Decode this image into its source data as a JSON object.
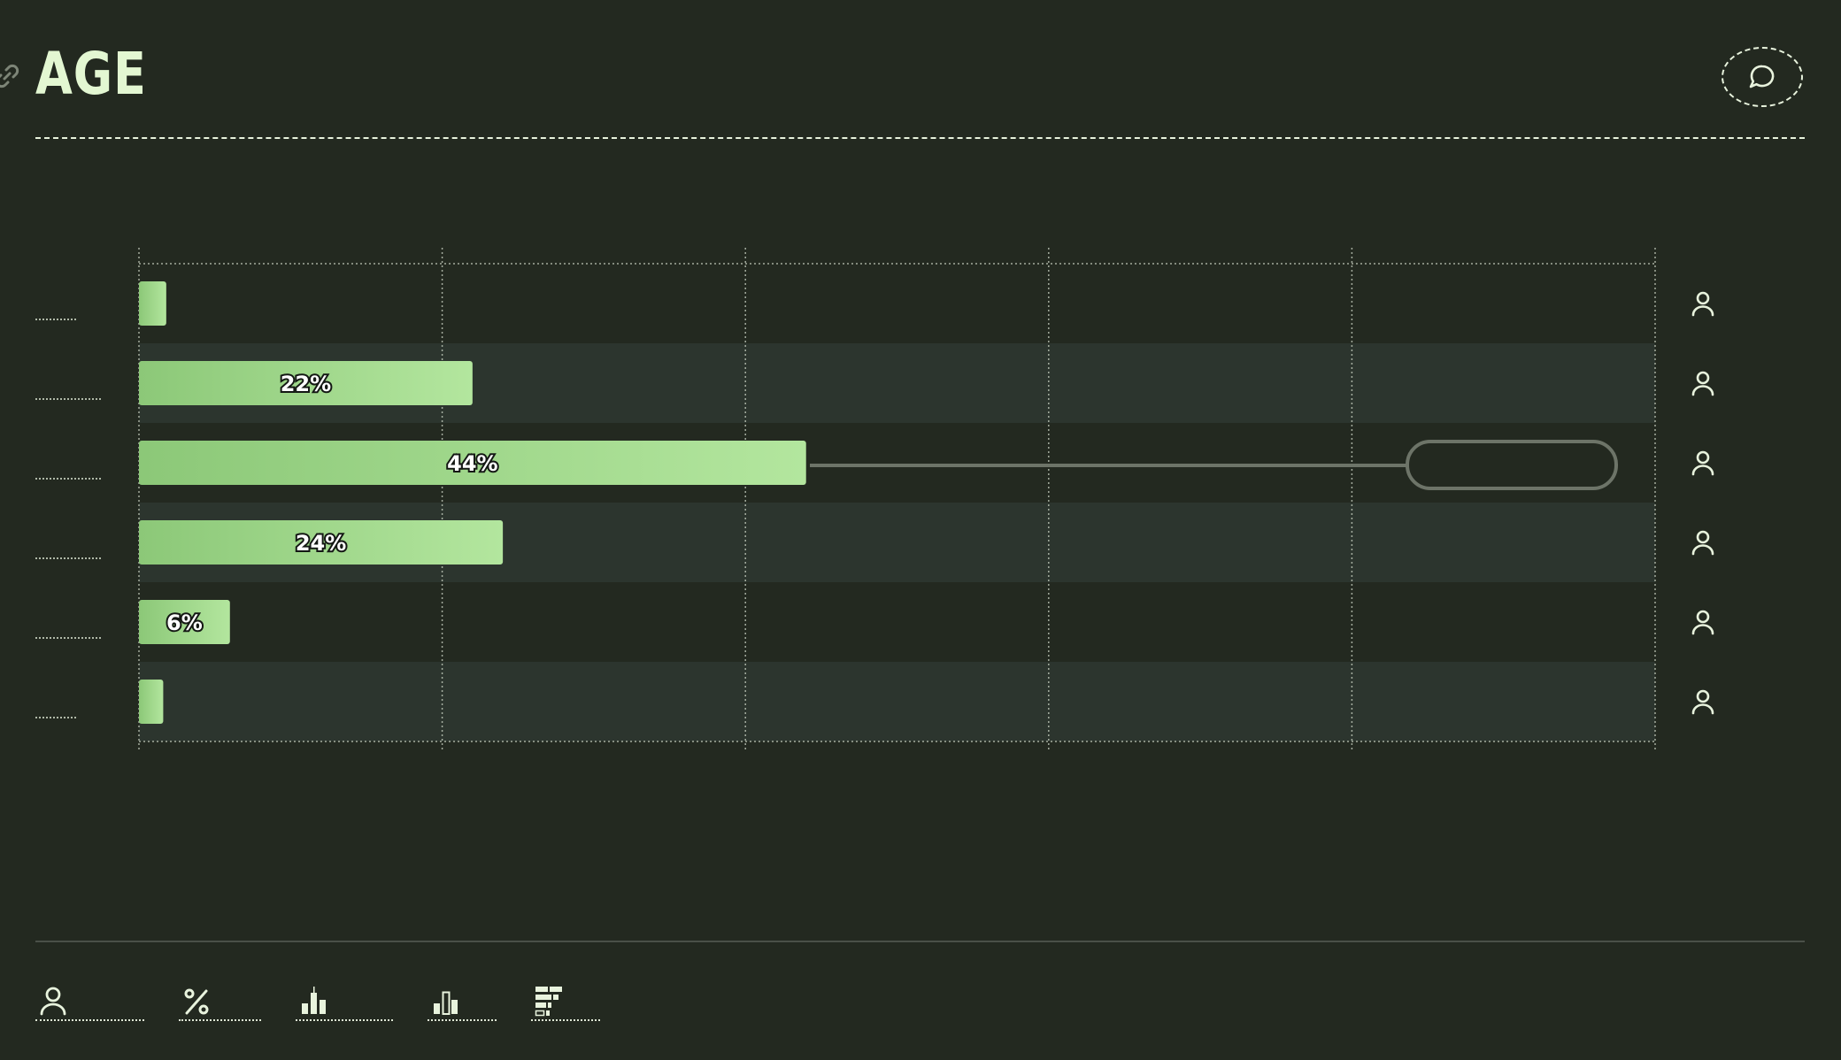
{
  "header": {
    "title": "AGE"
  },
  "chart_data": {
    "type": "bar",
    "orientation": "horizontal",
    "categories": [
      "",
      "",
      "",
      "",
      "",
      ""
    ],
    "values": [
      1.8,
      22,
      44,
      24,
      6,
      1.6
    ],
    "value_labels": [
      "",
      "22%",
      "44%",
      "24%",
      "6%",
      ""
    ],
    "xlim": [
      0,
      100
    ],
    "grid": true,
    "highlight_index": 2,
    "colors": {
      "bar_start": "#8cc878",
      "bar_end": "#b3e69e",
      "grid": "#cfd8c8",
      "band": "#2c352e"
    }
  },
  "row_icons": [
    "person-icon",
    "person-icon",
    "person-icon",
    "person-icon",
    "person-icon",
    "person-icon"
  ],
  "toolbar": [
    "person-icon",
    "percent-icon",
    "bar-chart-icon",
    "bar-chart-alt-icon",
    "stacked-chart-icon"
  ],
  "colors": {
    "background": "#232920",
    "accent": "#e3f7d2"
  }
}
